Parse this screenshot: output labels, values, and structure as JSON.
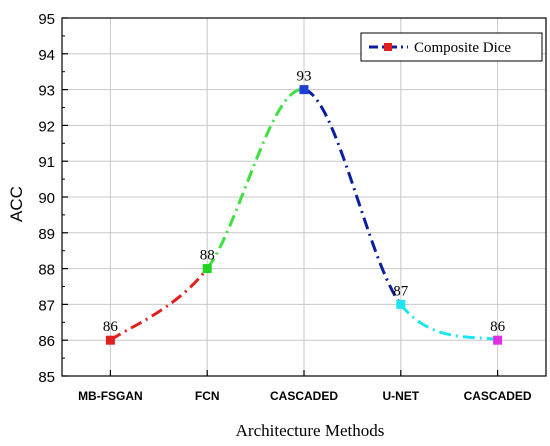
{
  "chart_data": {
    "type": "line",
    "xlabel": "Architecture Methods",
    "ylabel": "ACC",
    "categories": [
      "MB-FSGAN",
      "FCN",
      "CASCADED",
      "U-NET",
      "CASCADED"
    ],
    "ylim": [
      85,
      95
    ],
    "yticks": [
      "85",
      "86",
      "87",
      "88",
      "89",
      "90",
      "91",
      "92",
      "93",
      "94",
      "95"
    ],
    "grid": true,
    "legend_position": "top-right",
    "series": [
      {
        "name": "Composite Dice",
        "values": [
          86,
          88,
          93,
          87,
          86
        ],
        "labels": [
          "86",
          "88",
          "93",
          "87",
          "86"
        ],
        "marker_colors": [
          "#e0201e",
          "#22d322",
          "#1f3fd8",
          "#1ee6ee",
          "#e02ee0"
        ],
        "segment_colors": [
          "#e0201e",
          "#3fe03f",
          "#0b1f9e",
          "#1ee6ee"
        ],
        "legend_line_color": "#0b1f9e",
        "legend_marker_color": "#e0201e"
      }
    ]
  }
}
